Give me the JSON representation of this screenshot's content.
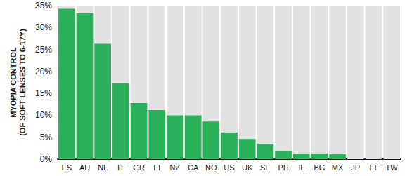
{
  "chart_data": {
    "type": "bar",
    "y_label": "MYOPIA CONTROL\n(OF SOFT LENSES TO 6-17Y)",
    "categories": [
      "ES",
      "AU",
      "NL",
      "IT",
      "GR",
      "FI",
      "NZ",
      "CA",
      "NO",
      "US",
      "UK",
      "SE",
      "PH",
      "IL",
      "BG",
      "MX",
      "JP",
      "LT",
      "TW"
    ],
    "values": [
      34.3,
      33.3,
      26.3,
      17.3,
      12.8,
      11.2,
      10.0,
      10.0,
      8.6,
      6.1,
      4.6,
      3.5,
      1.8,
      1.3,
      1.3,
      1.1,
      0,
      0,
      0
    ],
    "color": "#2bb05a",
    "ylim": [
      0,
      35
    ],
    "yticks": [
      {
        "value": 0,
        "label": "0%"
      },
      {
        "value": 5,
        "label": "5%"
      },
      {
        "value": 10,
        "label": "10%"
      },
      {
        "value": 15,
        "label": "15%"
      },
      {
        "value": 20,
        "label": "20%"
      },
      {
        "value": 25,
        "label": "25%"
      },
      {
        "value": 30,
        "label": "30%"
      },
      {
        "value": 35,
        "label": "35%"
      }
    ],
    "grid": false
  }
}
